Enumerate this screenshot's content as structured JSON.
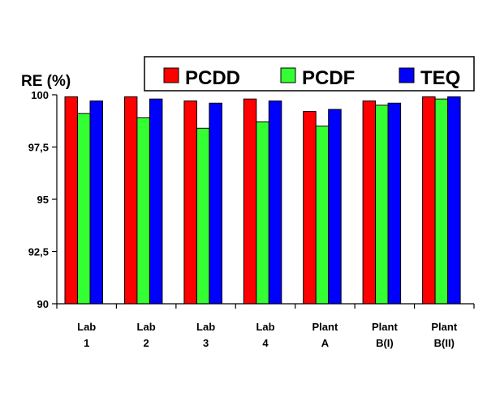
{
  "chart_data": {
    "type": "bar",
    "title": "",
    "ylabel": "RE (%)",
    "xlabel": "",
    "ylim": [
      90,
      100
    ],
    "yticks": [
      {
        "value": 90,
        "label": "90"
      },
      {
        "value": 92.5,
        "label": "92,5"
      },
      {
        "value": 95,
        "label": "95"
      },
      {
        "value": 97.5,
        "label": "97,5"
      },
      {
        "value": 100,
        "label": "100"
      }
    ],
    "categories": [
      [
        "Lab",
        "1"
      ],
      [
        "Lab",
        "2"
      ],
      [
        "Lab",
        "3"
      ],
      [
        "Lab",
        "4"
      ],
      [
        "Plant",
        "A"
      ],
      [
        "Plant",
        "B(I)"
      ],
      [
        "Plant",
        "B(II)"
      ]
    ],
    "series": [
      {
        "name": "PCDD",
        "color": "#ff0000",
        "values": [
          99.9,
          99.9,
          99.7,
          99.8,
          99.2,
          99.7,
          99.9
        ]
      },
      {
        "name": "PCDF",
        "color": "#33ff33",
        "values": [
          99.1,
          98.9,
          98.4,
          98.7,
          98.5,
          99.5,
          99.8
        ]
      },
      {
        "name": "TEQ",
        "color": "#0000ff",
        "values": [
          99.7,
          99.8,
          99.6,
          99.7,
          99.3,
          99.6,
          99.9
        ]
      }
    ],
    "legend_position": "top-right",
    "grid": false
  }
}
